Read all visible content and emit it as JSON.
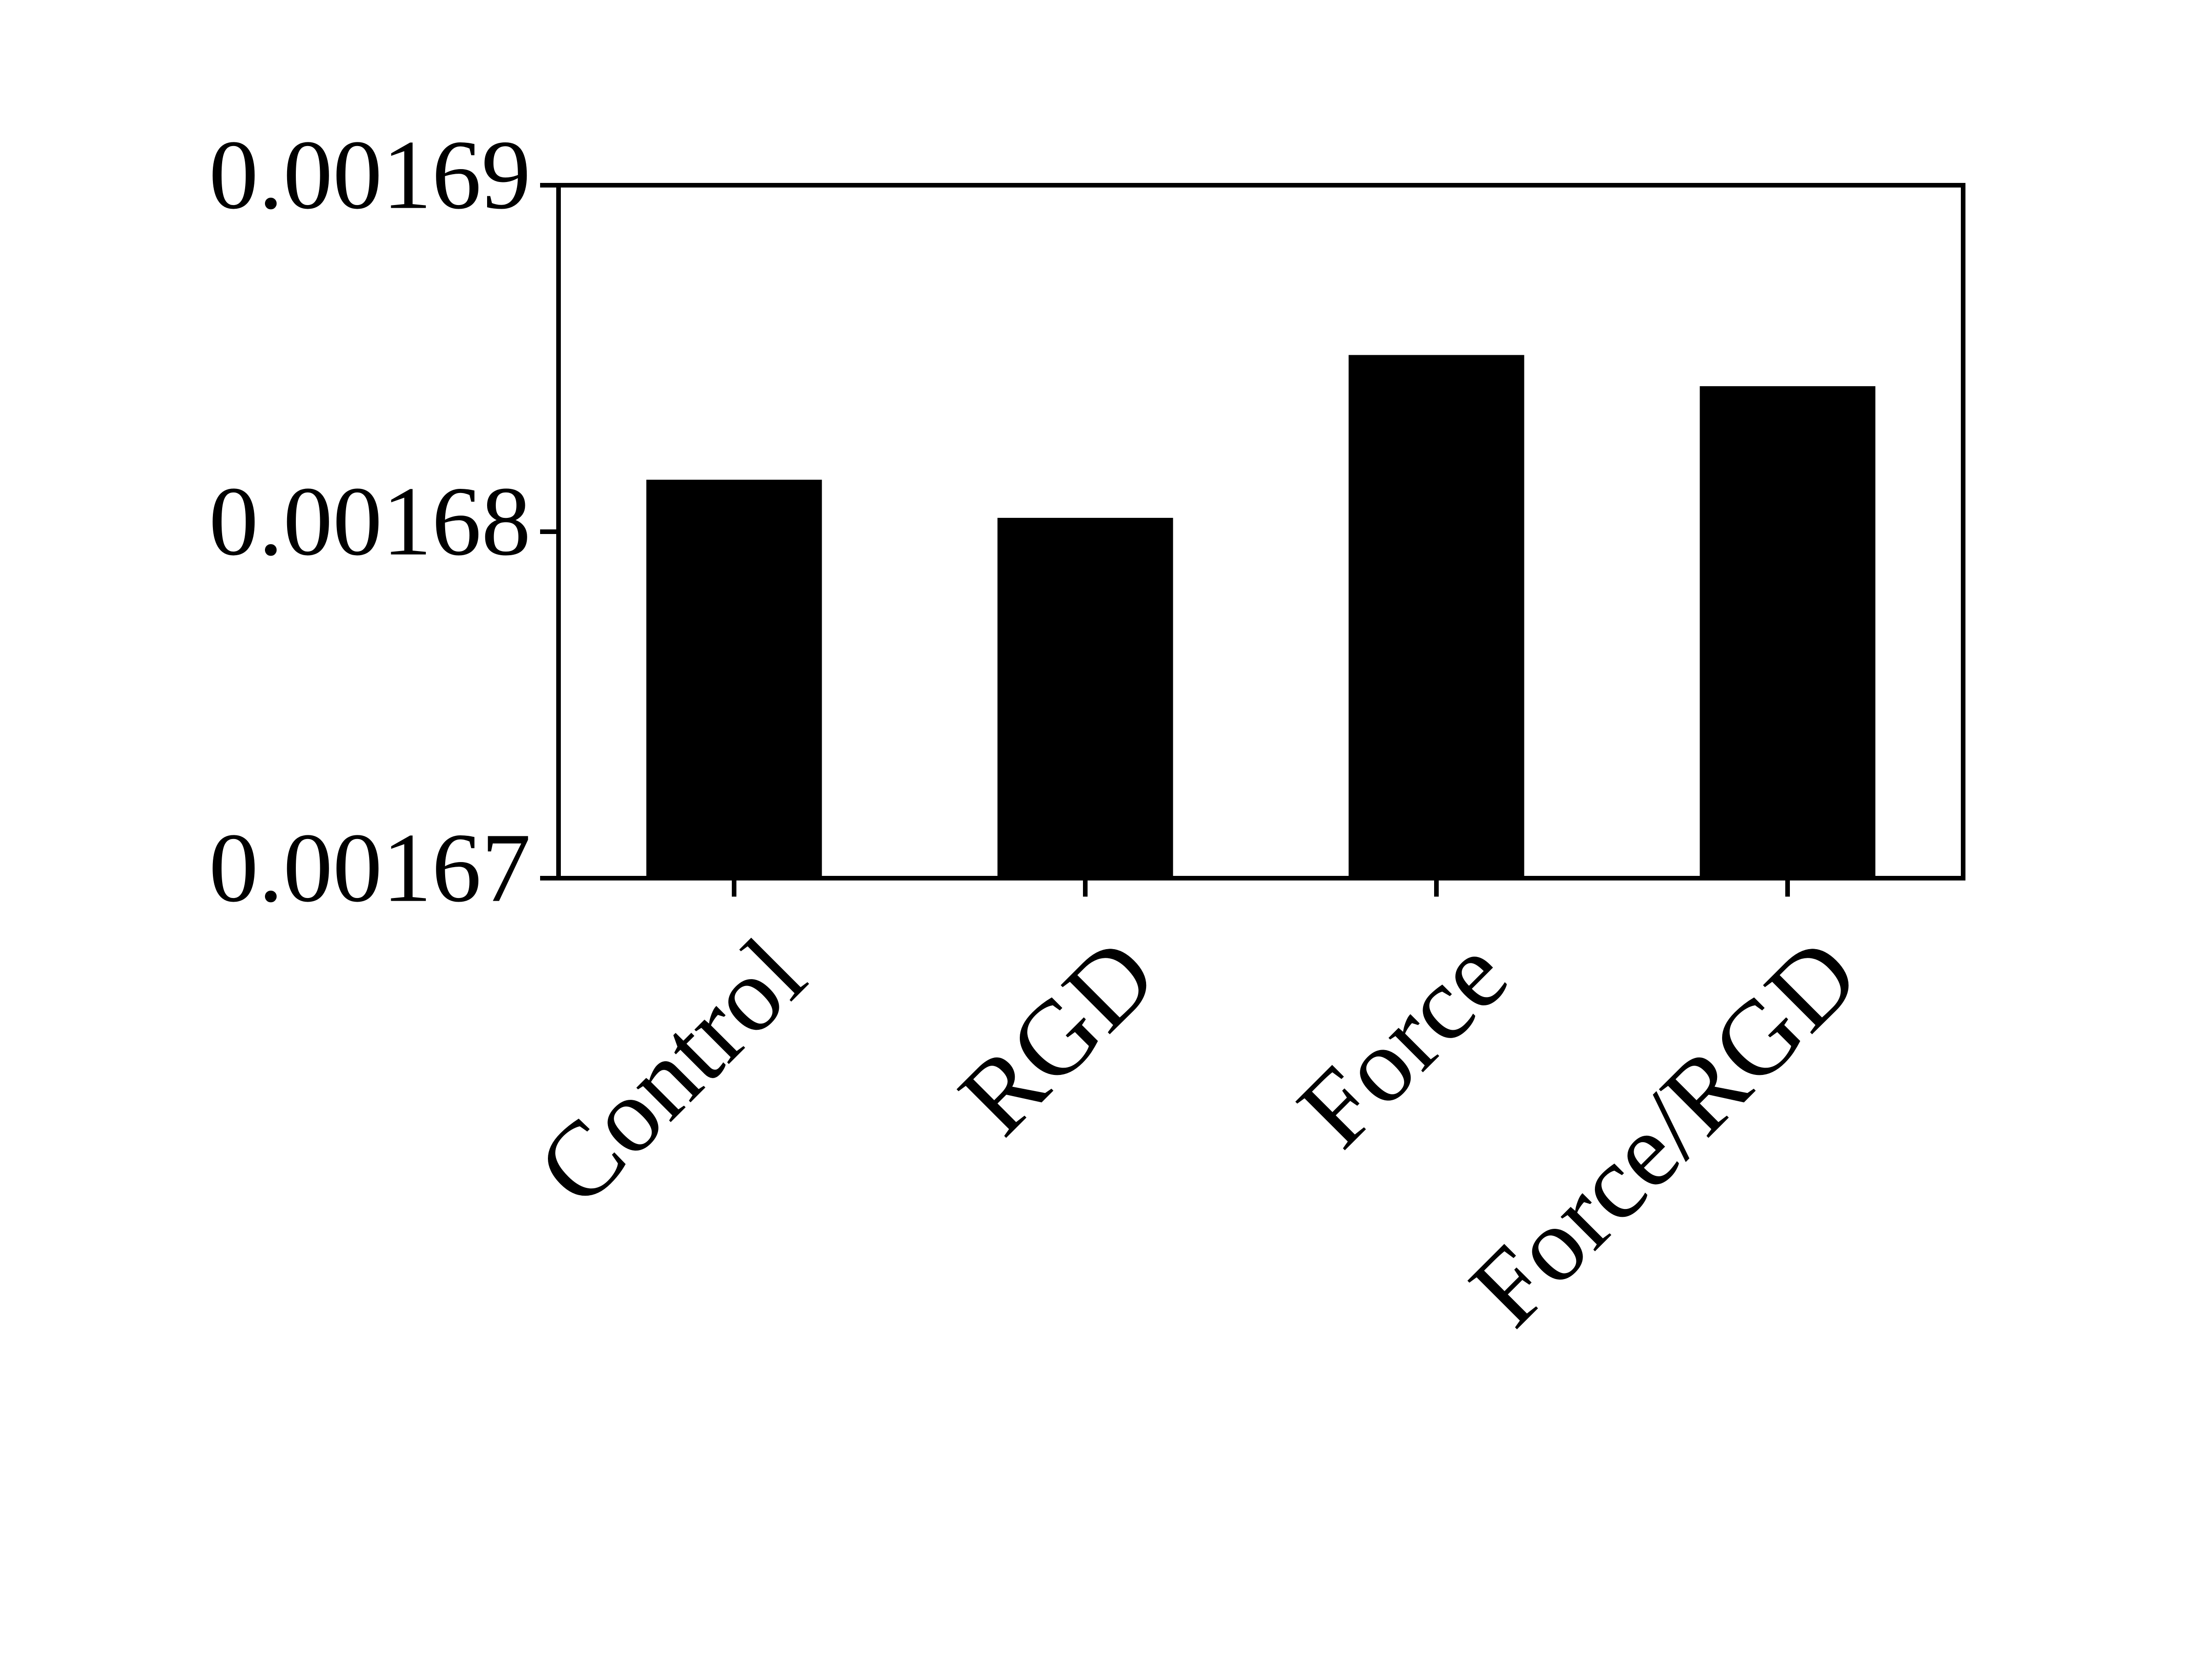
{
  "chart_data": {
    "type": "bar",
    "title": "",
    "xlabel": "",
    "ylabel": "",
    "categories": [
      "Control",
      "RGD",
      "Force",
      "Force/RGD"
    ],
    "values": [
      0.0016815,
      0.0016804,
      0.0016851,
      0.0016842
    ],
    "ylim": [
      0.00167,
      0.00169
    ],
    "yticks": [
      0.00167,
      0.00168,
      0.00169
    ],
    "ytick_labels": [
      "0.00167",
      "0.00168",
      "0.00169"
    ],
    "bar_color": "#000000",
    "grid": false,
    "legend": "none"
  }
}
